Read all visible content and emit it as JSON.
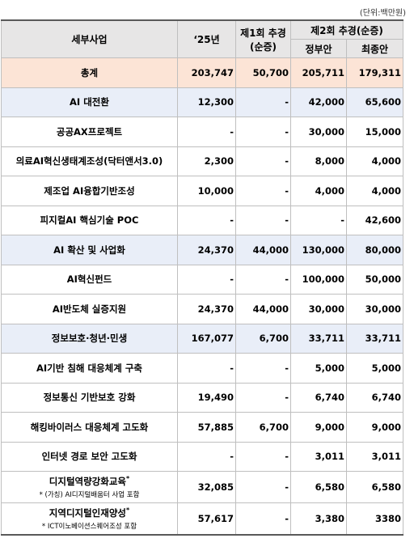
{
  "unit": "(단위:백만원)",
  "header": {
    "item": "세부사업",
    "y25": "‘25년",
    "supp1": [
      "제1회 추경",
      "(순증)"
    ],
    "supp2": "제2회 추경(순증)",
    "gov": "정부안",
    "final": "최종안"
  },
  "table": {
    "rows": [
      {
        "kind": "total",
        "name": "총계",
        "values": [
          "203,747",
          "50,700",
          "205,711",
          "179,311"
        ]
      },
      {
        "kind": "group",
        "name": "AI 대전환",
        "values": [
          "12,300",
          "-",
          "42,000",
          "65,600"
        ]
      },
      {
        "kind": "item",
        "name": "공공AX프로젝트",
        "values": [
          "-",
          "-",
          "30,000",
          "15,000"
        ]
      },
      {
        "kind": "item",
        "name": "의료AI혁신생태계조성(닥터앤서3.0)",
        "values": [
          "2,300",
          "-",
          "8,000",
          "4,000"
        ]
      },
      {
        "kind": "item",
        "name": "제조업 AI융합기반조성",
        "values": [
          "10,000",
          "-",
          "4,000",
          "4,000"
        ]
      },
      {
        "kind": "item",
        "name": "피지컬AI 핵심기술 POC",
        "values": [
          "-",
          "-",
          "-",
          "42,600"
        ]
      },
      {
        "kind": "group",
        "name": "AI 확산 및 사업화",
        "values": [
          "24,370",
          "44,000",
          "130,000",
          "80,000"
        ]
      },
      {
        "kind": "item",
        "name": "AI혁신펀드",
        "values": [
          "-",
          "-",
          "100,000",
          "50,000"
        ]
      },
      {
        "kind": "item",
        "name": "AI반도체 실증지원",
        "values": [
          "24,370",
          "44,000",
          "30,000",
          "30,000"
        ]
      },
      {
        "kind": "group",
        "name": "정보보호·청년·민생",
        "values": [
          "167,077",
          "6,700",
          "33,711",
          "33,711"
        ]
      },
      {
        "kind": "item",
        "name": "AI기반 침해 대응체계 구축",
        "values": [
          "-",
          "-",
          "5,000",
          "5,000"
        ]
      },
      {
        "kind": "item",
        "name": "정보통신 기반보호 강화",
        "values": [
          "19,490",
          "-",
          "6,740",
          "6,740"
        ]
      },
      {
        "kind": "item",
        "name": "해킹바이러스 대응체계 고도화",
        "values": [
          "57,885",
          "6,700",
          "9,000",
          "9,000"
        ]
      },
      {
        "kind": "item",
        "name": "인터넷 경로 보안 고도화",
        "values": [
          "-",
          "-",
          "3,011",
          "3,011"
        ]
      },
      {
        "kind": "item",
        "name": "디지털역량강화교육",
        "mark": "*",
        "note": "* (가칭) AI디지털배움터 사업 포함",
        "values": [
          "32,085",
          "-",
          "6,580",
          "6,580"
        ]
      },
      {
        "kind": "item",
        "name": "지역디지털인재양성",
        "mark": "*",
        "note": "* ICT이노베이션스퀘어조성 포함",
        "values": [
          "57,617",
          "-",
          "3,380",
          "3380"
        ]
      }
    ]
  }
}
